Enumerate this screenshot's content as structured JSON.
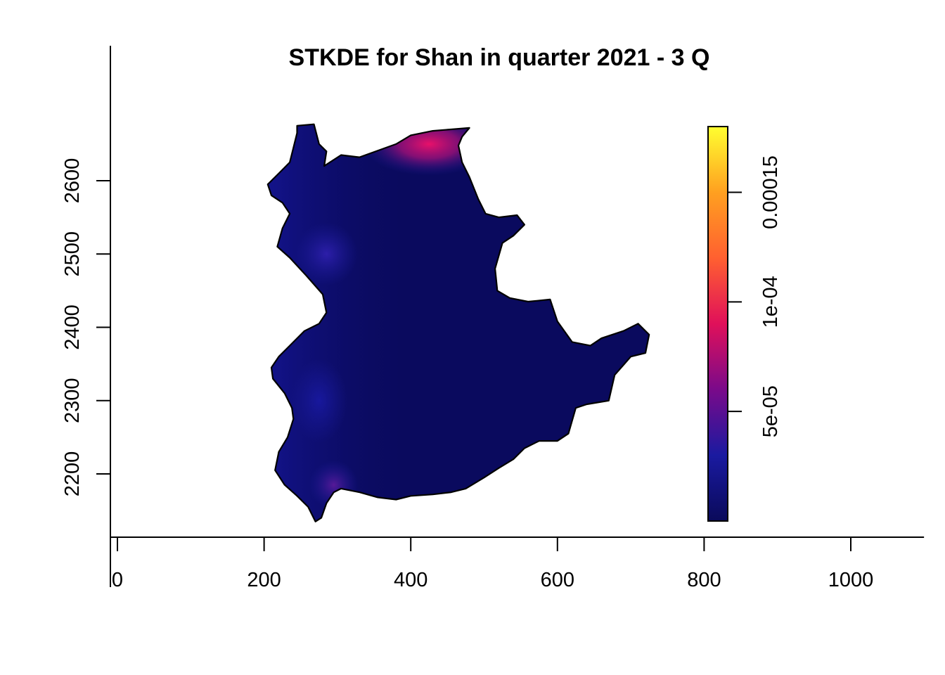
{
  "chart_data": {
    "type": "heatmap",
    "title": "STKDE for Shan in quarter 2021 - 3 Q",
    "xlabel": "",
    "ylabel": "",
    "xlim": [
      0,
      1050
    ],
    "ylim": [
      2130,
      2690
    ],
    "x_ticks": [
      {
        "value": 0,
        "label": "0"
      },
      {
        "value": 200,
        "label": "200"
      },
      {
        "value": 400,
        "label": "400"
      },
      {
        "value": 600,
        "label": "600"
      },
      {
        "value": 800,
        "label": "800"
      },
      {
        "value": 1000,
        "label": "1000"
      }
    ],
    "y_ticks": [
      {
        "value": 2200,
        "label": "2200"
      },
      {
        "value": 2300,
        "label": "2300"
      },
      {
        "value": 2400,
        "label": "2400"
      },
      {
        "value": 2500,
        "label": "2500"
      },
      {
        "value": 2600,
        "label": "2600"
      }
    ],
    "colorbar": {
      "range": [
        0,
        0.00018
      ],
      "ticks": [
        {
          "value": 5e-05,
          "label": "5e-05"
        },
        {
          "value": 0.0001,
          "label": "1e-04"
        },
        {
          "value": 0.00015,
          "label": "0.00015"
        }
      ],
      "colors": [
        "#0a0a5a",
        "#1a1aa0",
        "#7a0a8a",
        "#e0105a",
        "#ff6030",
        "#ffa020",
        "#ffff30"
      ]
    },
    "region_outline": [
      [
        245,
        2675
      ],
      [
        268,
        2677
      ],
      [
        275,
        2650
      ],
      [
        285,
        2640
      ],
      [
        282,
        2620
      ],
      [
        305,
        2635
      ],
      [
        330,
        2632
      ],
      [
        380,
        2650
      ],
      [
        400,
        2662
      ],
      [
        430,
        2668
      ],
      [
        455,
        2670
      ],
      [
        480,
        2672
      ],
      [
        470,
        2660
      ],
      [
        465,
        2648
      ],
      [
        470,
        2625
      ],
      [
        480,
        2605
      ],
      [
        492,
        2575
      ],
      [
        502,
        2555
      ],
      [
        520,
        2550
      ],
      [
        545,
        2553
      ],
      [
        555,
        2540
      ],
      [
        540,
        2525
      ],
      [
        525,
        2515
      ],
      [
        515,
        2480
      ],
      [
        518,
        2450
      ],
      [
        535,
        2440
      ],
      [
        560,
        2435
      ],
      [
        590,
        2438
      ],
      [
        600,
        2408
      ],
      [
        620,
        2380
      ],
      [
        645,
        2375
      ],
      [
        660,
        2385
      ],
      [
        690,
        2395
      ],
      [
        710,
        2405
      ],
      [
        725,
        2390
      ],
      [
        720,
        2365
      ],
      [
        700,
        2360
      ],
      [
        678,
        2335
      ],
      [
        670,
        2300
      ],
      [
        640,
        2295
      ],
      [
        625,
        2290
      ],
      [
        615,
        2255
      ],
      [
        600,
        2245
      ],
      [
        575,
        2245
      ],
      [
        555,
        2235
      ],
      [
        540,
        2220
      ],
      [
        520,
        2208
      ],
      [
        500,
        2195
      ],
      [
        475,
        2180
      ],
      [
        455,
        2175
      ],
      [
        430,
        2172
      ],
      [
        400,
        2170
      ],
      [
        380,
        2165
      ],
      [
        355,
        2168
      ],
      [
        330,
        2175
      ],
      [
        305,
        2180
      ],
      [
        295,
        2175
      ],
      [
        285,
        2160
      ],
      [
        278,
        2140
      ],
      [
        270,
        2135
      ],
      [
        260,
        2155
      ],
      [
        245,
        2170
      ],
      [
        228,
        2185
      ],
      [
        215,
        2205
      ],
      [
        220,
        2230
      ],
      [
        232,
        2250
      ],
      [
        240,
        2275
      ],
      [
        238,
        2290
      ],
      [
        228,
        2310
      ],
      [
        212,
        2330
      ],
      [
        210,
        2345
      ],
      [
        220,
        2360
      ],
      [
        235,
        2375
      ],
      [
        255,
        2395
      ],
      [
        275,
        2405
      ],
      [
        285,
        2420
      ],
      [
        280,
        2445
      ],
      [
        258,
        2470
      ],
      [
        235,
        2495
      ],
      [
        218,
        2510
      ],
      [
        225,
        2535
      ],
      [
        235,
        2555
      ],
      [
        225,
        2570
      ],
      [
        210,
        2580
      ],
      [
        205,
        2595
      ],
      [
        220,
        2610
      ],
      [
        235,
        2625
      ],
      [
        240,
        2645
      ],
      [
        245,
        2665
      ]
    ],
    "hotspots": [
      {
        "x": 425,
        "y": 2650,
        "value": 0.00011
      },
      {
        "x": 285,
        "y": 2500,
        "value": 2e-05
      },
      {
        "x": 295,
        "y": 2185,
        "value": 3e-05
      },
      {
        "x": 275,
        "y": 2300,
        "value": 1.2e-05
      }
    ]
  }
}
